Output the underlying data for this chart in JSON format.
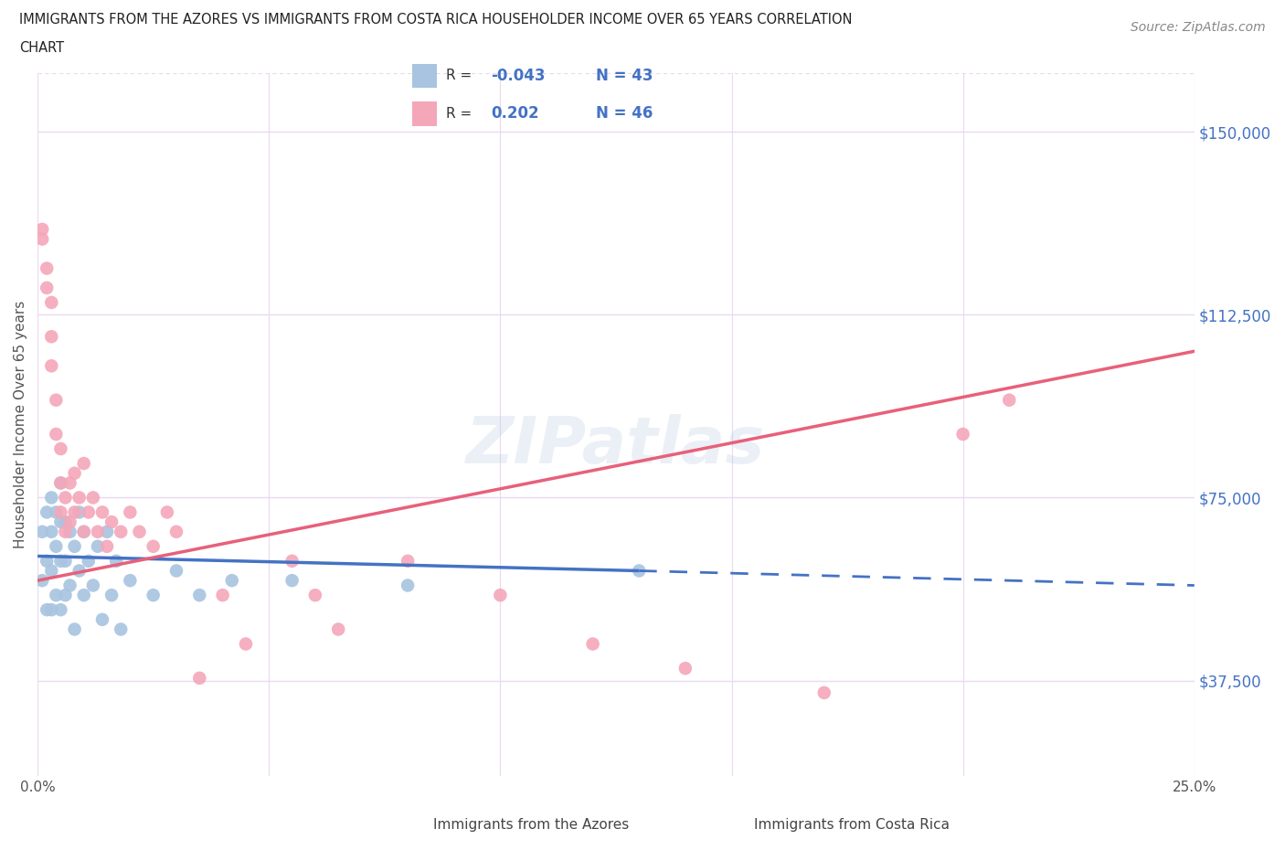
{
  "title_line1": "IMMIGRANTS FROM THE AZORES VS IMMIGRANTS FROM COSTA RICA HOUSEHOLDER INCOME OVER 65 YEARS CORRELATION",
  "title_line2": "CHART",
  "source": "Source: ZipAtlas.com",
  "ylabel": "Householder Income Over 65 years",
  "xlim": [
    0.0,
    0.25
  ],
  "ylim": [
    18000,
    162000
  ],
  "yticks": [
    37500,
    75000,
    112500,
    150000
  ],
  "ytick_labels": [
    "$37,500",
    "$75,000",
    "$112,500",
    "$150,000"
  ],
  "xticks": [
    0.0,
    0.05,
    0.1,
    0.15,
    0.2,
    0.25
  ],
  "xtick_labels": [
    "0.0%",
    "",
    "",
    "",
    "",
    "25.0%"
  ],
  "azores_color": "#a8c4e0",
  "costa_rica_color": "#f4a7b9",
  "azores_line_color": "#4472c4",
  "costa_rica_line_color": "#e8607a",
  "background_color": "#ffffff",
  "grid_color": "#ead8f0",
  "watermark": "ZIPatlas",
  "azores_x": [
    0.001,
    0.001,
    0.002,
    0.002,
    0.002,
    0.003,
    0.003,
    0.003,
    0.003,
    0.004,
    0.004,
    0.004,
    0.005,
    0.005,
    0.005,
    0.005,
    0.006,
    0.006,
    0.006,
    0.007,
    0.007,
    0.008,
    0.008,
    0.009,
    0.009,
    0.01,
    0.01,
    0.011,
    0.012,
    0.013,
    0.014,
    0.015,
    0.016,
    0.017,
    0.018,
    0.02,
    0.025,
    0.03,
    0.035,
    0.042,
    0.055,
    0.08,
    0.13
  ],
  "azores_y": [
    68000,
    58000,
    72000,
    62000,
    52000,
    75000,
    68000,
    60000,
    52000,
    72000,
    65000,
    55000,
    78000,
    70000,
    62000,
    52000,
    70000,
    62000,
    55000,
    68000,
    57000,
    65000,
    48000,
    60000,
    72000,
    68000,
    55000,
    62000,
    57000,
    65000,
    50000,
    68000,
    55000,
    62000,
    48000,
    58000,
    55000,
    60000,
    55000,
    58000,
    58000,
    57000,
    60000
  ],
  "costa_rica_x": [
    0.001,
    0.001,
    0.002,
    0.002,
    0.003,
    0.003,
    0.003,
    0.004,
    0.004,
    0.005,
    0.005,
    0.005,
    0.006,
    0.006,
    0.007,
    0.007,
    0.008,
    0.008,
    0.009,
    0.01,
    0.01,
    0.011,
    0.012,
    0.013,
    0.014,
    0.015,
    0.016,
    0.018,
    0.02,
    0.022,
    0.025,
    0.028,
    0.03,
    0.035,
    0.04,
    0.045,
    0.055,
    0.06,
    0.065,
    0.08,
    0.1,
    0.12,
    0.14,
    0.17,
    0.2,
    0.21
  ],
  "costa_rica_y": [
    130000,
    128000,
    122000,
    118000,
    115000,
    108000,
    102000,
    95000,
    88000,
    85000,
    78000,
    72000,
    75000,
    68000,
    78000,
    70000,
    80000,
    72000,
    75000,
    82000,
    68000,
    72000,
    75000,
    68000,
    72000,
    65000,
    70000,
    68000,
    72000,
    68000,
    65000,
    72000,
    68000,
    38000,
    55000,
    45000,
    62000,
    55000,
    48000,
    62000,
    55000,
    45000,
    40000,
    35000,
    88000,
    95000
  ],
  "az_trend_x0": 0.0,
  "az_trend_x1": 0.13,
  "az_trend_x2": 0.25,
  "cr_trend_x0": 0.0,
  "cr_trend_x1": 0.25
}
